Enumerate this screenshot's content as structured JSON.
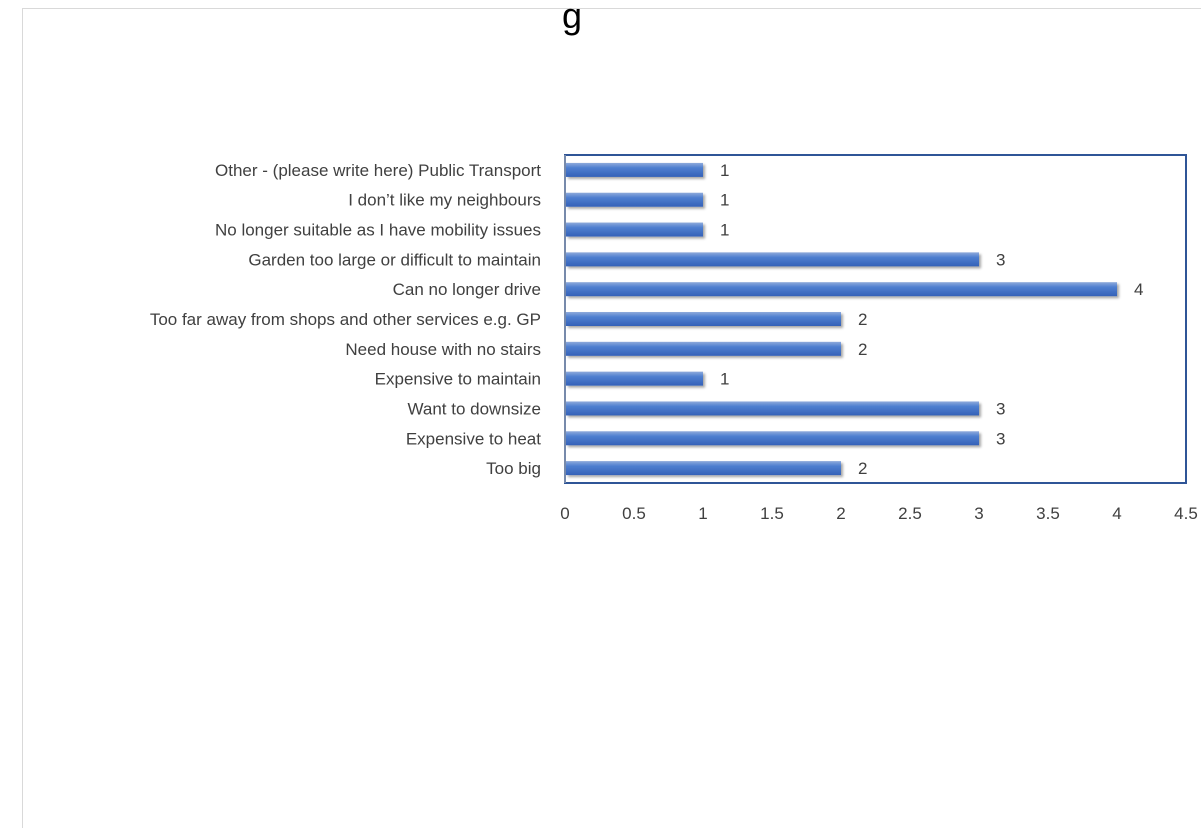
{
  "chart_data": {
    "type": "bar",
    "orientation": "horizontal",
    "title": "",
    "title_visible_fragment": "g",
    "xlabel": "",
    "ylabel": "",
    "categories": [
      "Too big",
      "Expensive to heat",
      "Want to downsize",
      "Expensive to maintain",
      "Need house with no stairs",
      "Too far away from shops and other services e.g. GP",
      "Can no longer drive",
      "Garden too large or difficult to maintain",
      "No longer suitable as I have mobility issues",
      "I don’t like my neighbours",
      "Other - (please write here) Public Transport"
    ],
    "values": [
      2,
      3,
      3,
      1,
      2,
      2,
      4,
      3,
      1,
      1,
      1
    ],
    "xlim": [
      0,
      4.5
    ],
    "xticks": [
      "0",
      "0.5",
      "1",
      "1.5",
      "2",
      "2.5",
      "3",
      "3.5",
      "4",
      "4.5"
    ],
    "grid": false,
    "legend": "none",
    "data_labels": true,
    "colors": {
      "bar": "#4472c4",
      "bar_highlight": "#8eaadb",
      "plot_border": "#2f5597",
      "text": "#404040"
    }
  }
}
